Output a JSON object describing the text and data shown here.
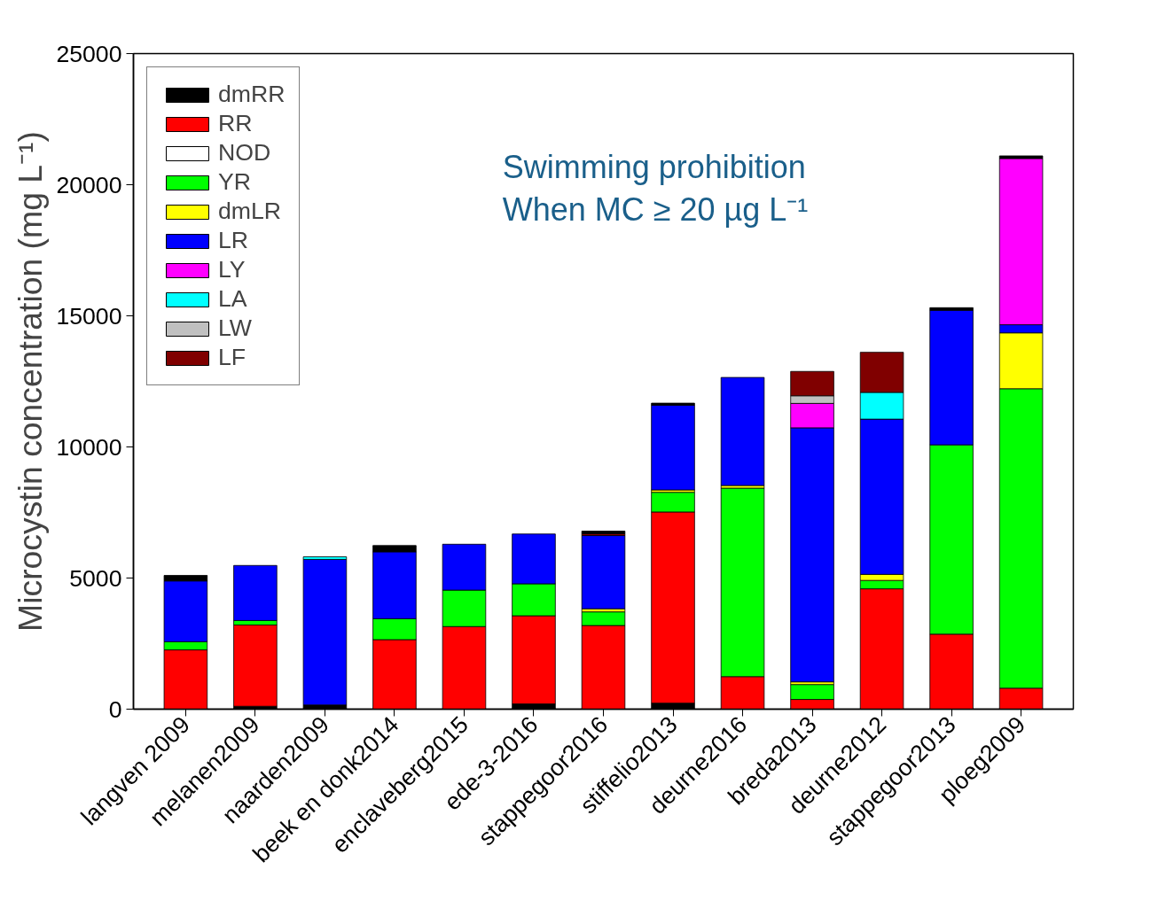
{
  "chart_data": {
    "type": "bar",
    "stacked": true,
    "ylabel": "Microcystin concentration (mg L⁻¹)",
    "categories": [
      "langven 2009",
      "melanen2009",
      "naarden2009",
      "beek en donk2014",
      "enclaveberg2015",
      "ede-3-2016",
      "stappegoor2016",
      "stiffelio2013",
      "deurne2016",
      "breda2013",
      "deurne2012",
      "stappegoor2013",
      "ploeg2009"
    ],
    "series": [
      {
        "name": "dmRR",
        "color": "#000000",
        "values": [
          null,
          110,
          160,
          null,
          null,
          200,
          null,
          230,
          null,
          null,
          null,
          null,
          null
        ]
      },
      {
        "name": "RR",
        "color": "#ff0000",
        "values": [
          2260,
          3100,
          null,
          2650,
          3150,
          3360,
          3190,
          7290,
          1240,
          370,
          4590,
          2860,
          800
        ]
      },
      {
        "name": "NOD",
        "color": "#ffffff",
        "values": [
          null,
          null,
          null,
          null,
          null,
          null,
          null,
          null,
          null,
          null,
          null,
          null,
          null
        ]
      },
      {
        "name": "YR",
        "color": "#00ff00",
        "values": [
          310,
          170,
          null,
          800,
          1390,
          1220,
          520,
          750,
          7190,
          570,
          320,
          7220,
          11420
        ]
      },
      {
        "name": "dmLR",
        "color": "#ffff00",
        "values": [
          null,
          null,
          null,
          null,
          null,
          null,
          120,
          90,
          100,
          100,
          230,
          null,
          2130
        ]
      },
      {
        "name": "LR",
        "color": "#0000ff",
        "values": [
          2320,
          2100,
          5550,
          2550,
          1750,
          1900,
          2790,
          3230,
          4120,
          9690,
          5920,
          5130,
          310
        ]
      },
      {
        "name": "LY",
        "color": "#ff00ff",
        "values": [
          null,
          null,
          null,
          null,
          null,
          null,
          null,
          null,
          null,
          930,
          null,
          null,
          6340
        ]
      },
      {
        "name": "LA",
        "color": "#00ffff",
        "values": [
          null,
          null,
          100,
          null,
          null,
          null,
          null,
          null,
          null,
          null,
          1020,
          null,
          null
        ]
      },
      {
        "name": "LW",
        "color": "#c0c0c0",
        "values": [
          null,
          null,
          null,
          null,
          null,
          null,
          null,
          null,
          null,
          290,
          null,
          null,
          null
        ]
      },
      {
        "name": "LF",
        "color": "#800000",
        "values": [
          null,
          null,
          null,
          null,
          null,
          null,
          70,
          null,
          null,
          930,
          1530,
          null,
          null
        ]
      },
      {
        "color": "#000000",
        "values": [
          210,
          null,
          null,
          240,
          null,
          null,
          100,
          80,
          null,
          null,
          null,
          100,
          100
        ]
      }
    ],
    "ylim": [
      0,
      25000
    ],
    "yticks": [
      0,
      5000,
      10000,
      15000,
      20000,
      25000
    ],
    "grid": false,
    "legend": "top left",
    "annotations": [
      "Swimming prohibition",
      "When MC ≥ 20 µg L⁻¹"
    ]
  }
}
